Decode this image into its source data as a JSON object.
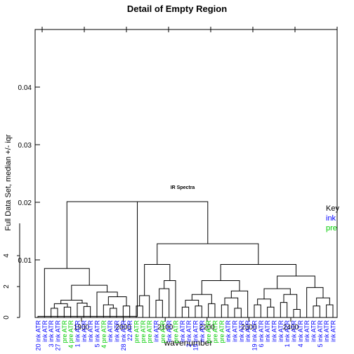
{
  "chart_data": {
    "type": "dendrogram",
    "title": "Detail of Empty Region",
    "xlabel": "wavenumber",
    "ylabel": "Full Data Set, median +/- iqr",
    "annotation": "IR Spectra",
    "ylim": [
      0,
      0.05
    ],
    "y_ticks": [
      0.01,
      0.02,
      0.03,
      0.04
    ],
    "x_ticks": [
      1900,
      2000,
      2100,
      2200,
      2300,
      2400
    ],
    "inset_y_ticks": [
      "0",
      "2",
      "4"
    ],
    "legend": {
      "title": "Key",
      "entries": [
        {
          "label": "ink",
          "color": "#0000ff"
        },
        {
          "label": "pre",
          "color": "#00cc00"
        }
      ]
    },
    "leaves": [
      {
        "label": "20 ink ATR",
        "group": "ink"
      },
      {
        "label": "ink ATR",
        "group": "ink"
      },
      {
        "label": "3 ink ATR",
        "group": "ink"
      },
      {
        "label": "27 ink ATR",
        "group": "ink"
      },
      {
        "label": "pre ATR",
        "group": "pre"
      },
      {
        "label": "4 pre ATR",
        "group": "pre"
      },
      {
        "label": "1 ink ATR",
        "group": "ink"
      },
      {
        "label": "ink ATR",
        "group": "ink"
      },
      {
        "label": "ink ATR",
        "group": "ink"
      },
      {
        "label": "5 ink ATR",
        "group": "ink"
      },
      {
        "label": "4 pre ATR",
        "group": "pre"
      },
      {
        "label": "ink ATR",
        "group": "ink"
      },
      {
        "label": "ink ATR",
        "group": "ink"
      },
      {
        "label": "28 ink ATR",
        "group": "ink"
      },
      {
        "label": "22 ATR",
        "group": "ink"
      },
      {
        "label": "pre ATR",
        "group": "pre"
      },
      {
        "label": "pre ATR",
        "group": "pre"
      },
      {
        "label": "pre ATR",
        "group": "pre"
      },
      {
        "label": "ink ATR",
        "group": "ink"
      },
      {
        "label": "pre ATR",
        "group": "pre"
      },
      {
        "label": "ink ATR",
        "group": "ink"
      },
      {
        "label": "pre ATR",
        "group": "pre"
      },
      {
        "label": "ink ATR",
        "group": "ink"
      },
      {
        "label": "2 ink ATR",
        "group": "ink"
      },
      {
        "label": "15 ink ATR",
        "group": "ink"
      },
      {
        "label": "ink ATR",
        "group": "ink"
      },
      {
        "label": "pre ATR",
        "group": "pre"
      },
      {
        "label": "pre ATR",
        "group": "pre"
      },
      {
        "label": "pre ATR",
        "group": "pre"
      },
      {
        "label": "ink ATR",
        "group": "ink"
      },
      {
        "label": "ink ATR",
        "group": "ink"
      },
      {
        "label": "ink ATR",
        "group": "ink"
      },
      {
        "label": "ink ATR",
        "group": "ink"
      },
      {
        "label": "19 ink ATR",
        "group": "ink"
      },
      {
        "label": "6 ink ATR",
        "group": "ink"
      },
      {
        "label": "ink ATR",
        "group": "ink"
      },
      {
        "label": "ink ATR",
        "group": "ink"
      },
      {
        "label": "ink ATR",
        "group": "ink"
      },
      {
        "label": "1 ink ATR",
        "group": "ink"
      },
      {
        "label": "ink ATR",
        "group": "ink"
      },
      {
        "label": "4 ink ATR",
        "group": "ink"
      },
      {
        "label": "ink ATR",
        "group": "ink"
      },
      {
        "label": "ink ATR",
        "group": "ink"
      },
      {
        "label": "5 ink ATR",
        "group": "ink"
      },
      {
        "label": "ink ATR",
        "group": "ink"
      },
      {
        "label": "ink ATR",
        "group": "ink"
      }
    ],
    "merges": [
      {
        "a": 2,
        "b": 3,
        "h": 0.0016
      },
      {
        "a": 4,
        "b": 5,
        "h": 0.0018
      },
      {
        "a": "m0",
        "b": "m1",
        "h": 0.0024
      },
      {
        "a": 7,
        "b": 8,
        "h": 0.0019
      },
      {
        "a": 6,
        "b": "m3",
        "h": 0.0025
      },
      {
        "a": "m2",
        "b": "m4",
        "h": 0.003
      },
      {
        "a": 11,
        "b": 12,
        "h": 0.0016
      },
      {
        "a": 10,
        "b": "m6",
        "h": 0.0022
      },
      {
        "a": 13,
        "b": 14,
        "h": 0.002
      },
      {
        "a": "m7",
        "b": "m8",
        "h": 0.0036
      },
      {
        "a": 9,
        "b": "m9",
        "h": 0.0044
      },
      {
        "a": "m5",
        "b": "m10",
        "h": 0.0056
      },
      {
        "a": 1,
        "b": "m11",
        "h": 0.0085
      },
      {
        "a": 15,
        "b": 16,
        "h": 0.002
      },
      {
        "a": "m13",
        "b": 17,
        "h": 0.0038
      },
      {
        "a": 18,
        "b": 19,
        "h": 0.003
      },
      {
        "a": 20,
        "b": "m15",
        "h": 0.005
      },
      {
        "a": 21,
        "b": "m16",
        "h": 0.0064
      },
      {
        "a": "m14",
        "b": "m17",
        "h": 0.0092
      },
      {
        "a": 22,
        "b": 23,
        "h": 0.0018
      },
      {
        "a": 24,
        "b": 25,
        "h": 0.002
      },
      {
        "a": "m19",
        "b": "m20",
        "h": 0.003
      },
      {
        "a": 26,
        "b": 27,
        "h": 0.0024
      },
      {
        "a": "m21",
        "b": "m22",
        "h": 0.004
      },
      {
        "a": 28,
        "b": 29,
        "h": 0.0022
      },
      {
        "a": 30,
        "b": 31,
        "h": 0.0016
      },
      {
        "a": "m24",
        "b": "m25",
        "h": 0.0034
      },
      {
        "a": 32,
        "b": "m26",
        "h": 0.0046
      },
      {
        "a": "m23",
        "b": "m27",
        "h": 0.0064
      },
      {
        "a": 33,
        "b": 34,
        "h": 0.0022
      },
      {
        "a": 35,
        "b": 36,
        "h": 0.0018
      },
      {
        "a": "m29",
        "b": "m30",
        "h": 0.0032
      },
      {
        "a": 37,
        "b": 38,
        "h": 0.0026
      },
      {
        "a": 39,
        "b": 40,
        "h": 0.0014
      },
      {
        "a": "m32",
        "b": "m33",
        "h": 0.004
      },
      {
        "a": "m31",
        "b": "m34",
        "h": 0.005
      },
      {
        "a": 42,
        "b": 43,
        "h": 0.002
      },
      {
        "a": 44,
        "b": 45,
        "h": 0.0022
      },
      {
        "a": "m36",
        "b": "m37",
        "h": 0.0034
      },
      {
        "a": 41,
        "b": "m38",
        "h": 0.0052
      },
      {
        "a": "m35",
        "b": "m39",
        "h": 0.0072
      },
      {
        "a": "m28",
        "b": "m40",
        "h": 0.0092
      },
      {
        "a": "m18",
        "b": "m41",
        "h": 0.0128
      },
      {
        "a": "m12",
        "b": "m42",
        "h": 0.0201
      },
      {
        "a": 0,
        "b": "m43",
        "h": 0.0002
      }
    ]
  }
}
